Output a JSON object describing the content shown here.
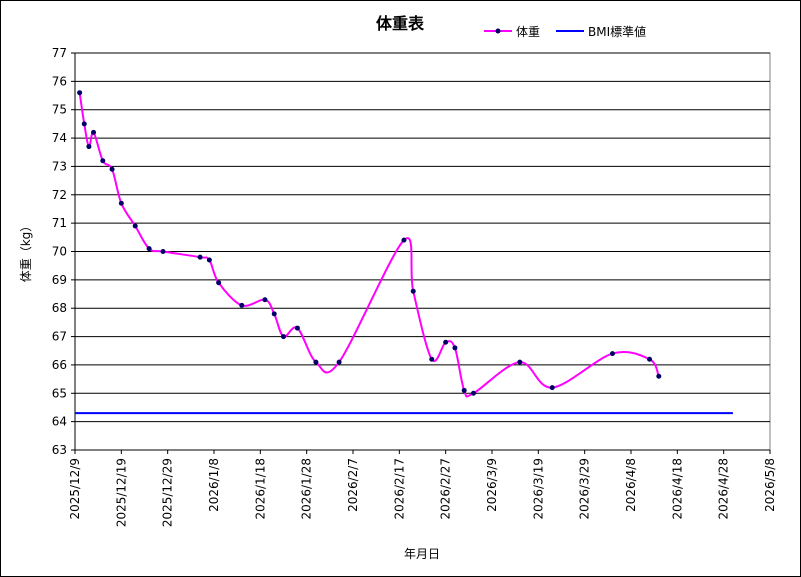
{
  "chart_data": {
    "type": "line",
    "title": "体重表",
    "x_label": "年月日",
    "y_label": "体重（kg）",
    "xlim": [
      "2025/12/9",
      "2026/5/8"
    ],
    "xticks": [
      "2025/12/9",
      "2025/12/19",
      "2025/12/29",
      "2026/1/8",
      "2026/1/18",
      "2026/1/28",
      "2026/2/7",
      "2026/2/17",
      "2026/2/27",
      "2026/3/9",
      "2026/3/19",
      "2026/3/29",
      "2026/4/8",
      "2026/4/18",
      "2026/4/28",
      "2026/5/8"
    ],
    "ylim": [
      63,
      77
    ],
    "yticks": [
      63,
      64,
      65,
      66,
      67,
      68,
      69,
      70,
      71,
      72,
      73,
      74,
      75,
      76,
      77
    ],
    "grid": true,
    "series": [
      {
        "name": "体重",
        "color": "#ff00ff",
        "marker_color": "#000066",
        "smooth": true,
        "x": [
          "2025/12/10",
          "2025/12/11",
          "2025/12/12",
          "2025/12/13",
          "2025/12/15",
          "2025/12/17",
          "2025/12/19",
          "2025/12/22",
          "2025/12/25",
          "2025/12/28",
          "2026/1/5",
          "2026/1/7",
          "2026/1/9",
          "2026/1/14",
          "2026/1/19",
          "2026/1/21",
          "2026/1/23",
          "2026/1/26",
          "2026/1/30",
          "2026/2/4",
          "2026/2/18",
          "2026/2/20",
          "2026/2/24",
          "2026/2/27",
          "2026/3/1",
          "2026/3/3",
          "2026/3/5",
          "2026/3/15",
          "2026/3/22",
          "2026/4/4",
          "2026/4/12",
          "2026/4/14"
        ],
        "values": [
          75.6,
          74.5,
          73.7,
          74.2,
          73.2,
          72.9,
          71.7,
          70.9,
          70.1,
          70.0,
          69.8,
          69.7,
          68.9,
          68.1,
          68.3,
          67.8,
          67.0,
          67.3,
          66.1,
          66.1,
          70.4,
          68.6,
          66.2,
          66.8,
          66.6,
          65.1,
          65.0,
          66.1,
          65.2,
          66.4,
          66.2,
          65.6
        ]
      },
      {
        "name": "BMI標準値",
        "color": "#0000ff",
        "smooth": false,
        "x": [
          "2025/12/9",
          "2026/4/30"
        ],
        "values": [
          64.3,
          64.3
        ]
      }
    ]
  }
}
